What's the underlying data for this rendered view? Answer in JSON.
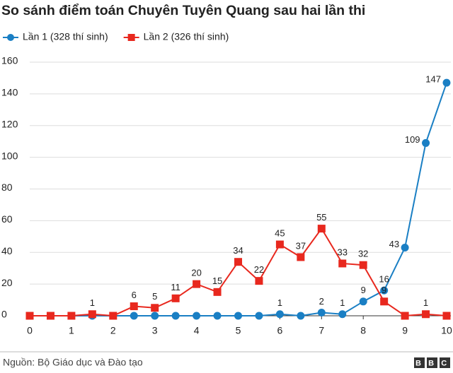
{
  "chart_data": {
    "type": "line",
    "title": "So sánh điểm toán Chuyên Tuyên Quang sau hai lần thi",
    "x": [
      0,
      0.5,
      1,
      1.5,
      2,
      2.5,
      3,
      3.5,
      4,
      4.5,
      5,
      5.5,
      6,
      6.5,
      7,
      7.5,
      8,
      8.5,
      9,
      9.5,
      10
    ],
    "series": [
      {
        "name": "Lần 1 (328 thí sinh)",
        "color": "#1a7fc4",
        "marker": "circle",
        "values": [
          0,
          0,
          0,
          0,
          0,
          0,
          0,
          0,
          0,
          0,
          0,
          0,
          1,
          0,
          2,
          1,
          9,
          16,
          43,
          109,
          147
        ]
      },
      {
        "name": "Lần 2 (326 thí sinh)",
        "color": "#e8281e",
        "marker": "square",
        "values": [
          0,
          0,
          0,
          1,
          0,
          6,
          5,
          11,
          20,
          15,
          34,
          22,
          45,
          37,
          55,
          33,
          32,
          9,
          0,
          1,
          0
        ]
      }
    ],
    "xlim": [
      0,
      10
    ],
    "xticks": [
      0,
      1,
      2,
      3,
      4,
      5,
      6,
      7,
      8,
      9,
      10
    ],
    "ylim": [
      0,
      160
    ],
    "yticks": [
      0,
      20,
      40,
      60,
      80,
      100,
      120,
      140,
      160
    ],
    "grid": true,
    "source": "Nguồn: Bộ Giáo dục và Đào tạo",
    "brand": "BBC"
  }
}
